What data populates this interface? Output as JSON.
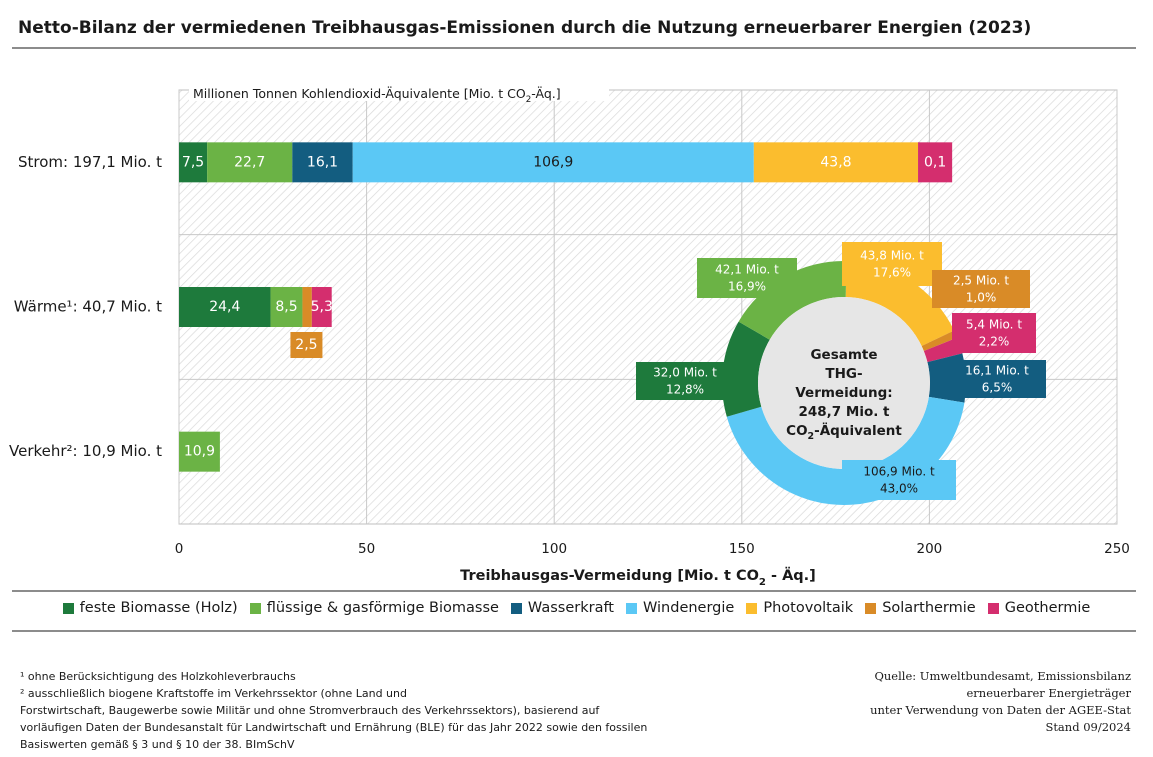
{
  "title": "Netto-Bilanz der vermiedenen Treibhausgas-Emissionen durch die Nutzung erneuerbarer Energien (2023)",
  "chart_data": {
    "type": "bar",
    "orientation": "horizontal",
    "stacked": true,
    "units_label": "Millionen Tonnen Kohlendioxid-Äquivalente [Mio. t CO2-Äq.]",
    "xlabel": "Treibhausgas-Vermeidung [Mio. t CO2 - Äq.]",
    "xlim": [
      0,
      250
    ],
    "xticks": [
      0,
      50,
      100,
      150,
      200,
      250
    ],
    "grid": true,
    "legend_position": "bottom",
    "categories": [
      "Strom: 197,1 Mio. t",
      "Wärme¹: 40,7 Mio. t",
      "Verkehr²: 10,9 Mio. t"
    ],
    "series": [
      {
        "name": "feste Biomasse (Holz)",
        "color": "#1e7a3c",
        "values": [
          7.5,
          24.4,
          0
        ],
        "labels": [
          "7,5",
          "24,4",
          ""
        ]
      },
      {
        "name": "flüssige & gasförmige Biomasse",
        "color": "#6bb345",
        "values": [
          22.7,
          8.5,
          10.9
        ],
        "labels": [
          "22,7",
          "8,5",
          "10,9"
        ]
      },
      {
        "name": "Wasserkraft",
        "color": "#135d80",
        "values": [
          16.1,
          0,
          0
        ],
        "labels": [
          "16,1",
          "",
          ""
        ]
      },
      {
        "name": "Windenergie",
        "color": "#5bc8f5",
        "values": [
          106.9,
          0,
          0
        ],
        "labels": [
          "106,9",
          "",
          ""
        ]
      },
      {
        "name": "Photovoltaik",
        "color": "#fbbd2e",
        "values": [
          43.8,
          0,
          0
        ],
        "labels": [
          "43,8",
          "",
          ""
        ]
      },
      {
        "name": "Solarthermie",
        "color": "#d98b27",
        "values": [
          0,
          2.5,
          0
        ],
        "labels": [
          "",
          "2,5",
          ""
        ]
      },
      {
        "name": "Geothermie",
        "color": "#d42e6e",
        "values": [
          0.1,
          5.3,
          0
        ],
        "labels": [
          "0,1",
          "5,3",
          ""
        ]
      }
    ],
    "donut": {
      "center_text": [
        "Gesamte",
        "THG-",
        "Vermeidung:",
        "248,7 Mio. t",
        "CO2-Äquivalent"
      ],
      "slices": [
        {
          "name": "Photovoltaik",
          "value": 43.8,
          "label": "43,8 Mio. t",
          "percent": "17,6%",
          "color": "#fbbd2e"
        },
        {
          "name": "Solarthermie",
          "value": 2.5,
          "label": "2,5 Mio. t",
          "percent": "1,0%",
          "color": "#d98b27"
        },
        {
          "name": "Geothermie",
          "value": 5.4,
          "label": "5,4 Mio. t",
          "percent": "2,2%",
          "color": "#d42e6e"
        },
        {
          "name": "Wasserkraft",
          "value": 16.1,
          "label": "16,1 Mio. t",
          "percent": "6,5%",
          "color": "#135d80"
        },
        {
          "name": "Windenergie",
          "value": 106.9,
          "label": "106,9 Mio. t",
          "percent": "43,0%",
          "color": "#5bc8f5"
        },
        {
          "name": "feste Biomasse (Holz)",
          "value": 32.0,
          "label": "32,0 Mio. t",
          "percent": "12,8%",
          "color": "#1e7a3c"
        },
        {
          "name": "flüssige & gasförmige Biomasse",
          "value": 42.1,
          "label": "42,1 Mio. t",
          "percent": "16,9%",
          "color": "#6bb345"
        }
      ]
    }
  },
  "footnotes": [
    "¹ ohne Berücksichtigung des Holzkohleverbrauchs",
    "² ausschließlich biogene Kraftstoffe im Verkehrssektor (ohne Land und",
    "Forstwirtschaft, Baugewerbe sowie Militär und ohne Stromverbrauch des Verkehrssektors), basierend auf",
    "vorläufigen Daten der Bundesanstalt für Landwirtschaft und Ernährung (BLE) für das Jahr 2022 sowie den fossilen",
    "Basiswerten gemäß § 3 und § 10 der 38. BImSchV"
  ],
  "source": [
    "Quelle: Umweltbundesamt, Emissionsbilanz",
    "erneuerbarer Energieträger",
    "unter Verwendung von Daten der AGEE-Stat",
    "Stand 09/2024"
  ]
}
